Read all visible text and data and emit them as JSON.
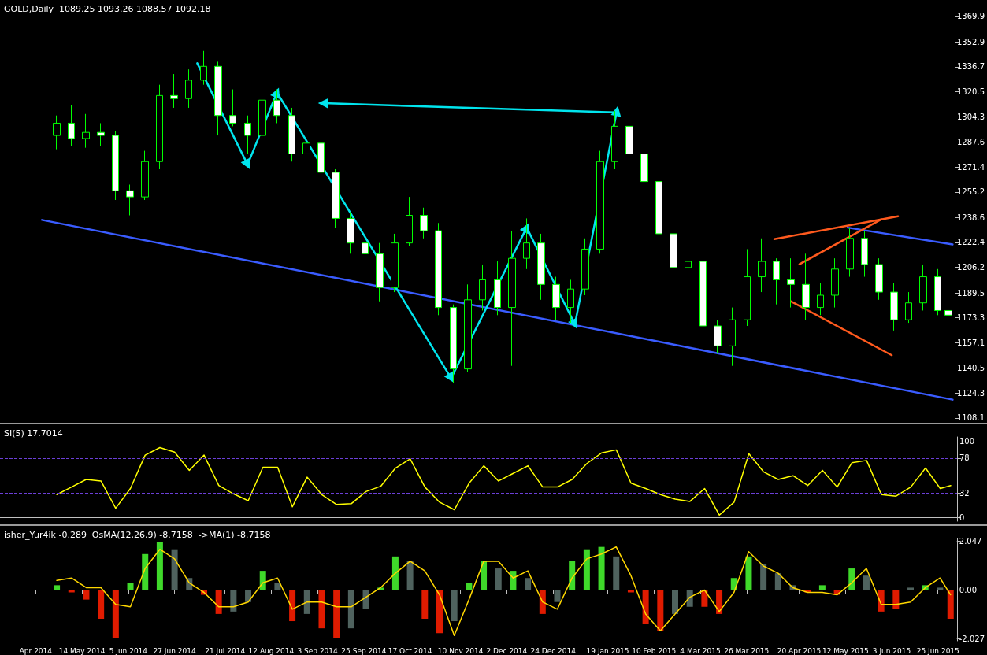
{
  "chart_data": [
    {
      "type": "candlestick",
      "title": "GOLD,Daily  1089.25 1093.26 1088.57 1092.18",
      "color": "#00ff00",
      "marker": "none",
      "grid": false,
      "tick_labels": "y",
      "x": [
        "2014-05-02",
        "2014-05-09",
        "2014-05-16",
        "2014-05-23",
        "2014-05-30",
        "2014-06-06",
        "2014-06-13",
        "2014-06-20",
        "2014-06-27",
        "2014-07-04",
        "2014-07-11",
        "2014-07-18",
        "2014-07-25",
        "2014-08-01",
        "2014-08-08",
        "2014-08-15",
        "2014-08-22",
        "2014-08-29",
        "2014-09-05",
        "2014-09-12",
        "2014-09-19",
        "2014-09-26",
        "2014-10-03",
        "2014-10-10",
        "2014-10-17",
        "2014-10-24",
        "2014-10-31",
        "2014-11-07",
        "2014-11-14",
        "2014-11-21",
        "2014-11-28",
        "2014-12-05",
        "2014-12-12",
        "2014-12-19",
        "2014-12-26",
        "2015-01-02",
        "2015-01-09",
        "2015-01-16",
        "2015-01-23",
        "2015-01-30",
        "2015-02-06",
        "2015-02-13",
        "2015-02-20",
        "2015-02-27",
        "2015-03-06",
        "2015-03-13",
        "2015-03-20",
        "2015-03-27",
        "2015-04-03",
        "2015-04-10",
        "2015-04-17",
        "2015-04-24",
        "2015-05-01",
        "2015-05-08",
        "2015-05-15",
        "2015-05-22",
        "2015-05-29",
        "2015-06-05",
        "2015-06-12",
        "2015-06-19",
        "2015-06-26",
        "2015-07-01"
      ],
      "ohlc": [
        [
          1292,
          1305,
          1283,
          1300
        ],
        [
          1300,
          1312,
          1285,
          1290
        ],
        [
          1290,
          1306,
          1284,
          1294
        ],
        [
          1294,
          1300,
          1285,
          1292
        ],
        [
          1292,
          1295,
          1250,
          1256
        ],
        [
          1256,
          1260,
          1240,
          1252
        ],
        [
          1252,
          1282,
          1250,
          1275
        ],
        [
          1275,
          1325,
          1270,
          1318
        ],
        [
          1318,
          1332,
          1310,
          1316
        ],
        [
          1316,
          1335,
          1310,
          1328
        ],
        [
          1328,
          1347,
          1325,
          1337
        ],
        [
          1337,
          1340,
          1292,
          1305
        ],
        [
          1305,
          1322,
          1298,
          1300
        ],
        [
          1300,
          1305,
          1280,
          1292
        ],
        [
          1292,
          1322,
          1290,
          1315
        ],
        [
          1315,
          1322,
          1300,
          1305
        ],
        [
          1305,
          1310,
          1275,
          1280
        ],
        [
          1280,
          1292,
          1278,
          1287
        ],
        [
          1287,
          1290,
          1260,
          1268
        ],
        [
          1268,
          1270,
          1232,
          1238
        ],
        [
          1238,
          1242,
          1215,
          1222
        ],
        [
          1222,
          1232,
          1205,
          1215
        ],
        [
          1215,
          1222,
          1184,
          1193
        ],
        [
          1193,
          1228,
          1190,
          1222
        ],
        [
          1222,
          1252,
          1220,
          1240
        ],
        [
          1240,
          1245,
          1225,
          1230
        ],
        [
          1230,
          1235,
          1175,
          1180
        ],
        [
          1180,
          1182,
          1131,
          1140
        ],
        [
          1140,
          1195,
          1138,
          1185
        ],
        [
          1185,
          1208,
          1178,
          1198
        ],
        [
          1198,
          1210,
          1175,
          1180
        ],
        [
          1180,
          1230,
          1142,
          1212
        ],
        [
          1212,
          1238,
          1205,
          1222
        ],
        [
          1222,
          1228,
          1185,
          1195
        ],
        [
          1195,
          1200,
          1172,
          1180
        ],
        [
          1180,
          1198,
          1170,
          1192
        ],
        [
          1192,
          1225,
          1188,
          1218
        ],
        [
          1218,
          1282,
          1215,
          1275
        ],
        [
          1275,
          1308,
          1270,
          1298
        ],
        [
          1298,
          1306,
          1270,
          1280
        ],
        [
          1280,
          1292,
          1255,
          1262
        ],
        [
          1262,
          1268,
          1220,
          1228
        ],
        [
          1228,
          1240,
          1198,
          1206
        ],
        [
          1206,
          1218,
          1192,
          1210
        ],
        [
          1210,
          1212,
          1162,
          1168
        ],
        [
          1168,
          1172,
          1150,
          1155
        ],
        [
          1155,
          1180,
          1142,
          1172
        ],
        [
          1172,
          1218,
          1168,
          1200
        ],
        [
          1200,
          1225,
          1190,
          1210
        ],
        [
          1210,
          1212,
          1182,
          1198
        ],
        [
          1198,
          1212,
          1180,
          1195
        ],
        [
          1195,
          1215,
          1172,
          1180
        ],
        [
          1180,
          1196,
          1175,
          1188
        ],
        [
          1188,
          1212,
          1180,
          1205
        ],
        [
          1205,
          1232,
          1200,
          1225
        ],
        [
          1225,
          1230,
          1200,
          1208
        ],
        [
          1208,
          1212,
          1185,
          1190
        ],
        [
          1190,
          1196,
          1165,
          1172
        ],
        [
          1172,
          1190,
          1170,
          1183
        ],
        [
          1183,
          1208,
          1178,
          1200
        ],
        [
          1200,
          1205,
          1175,
          1178
        ],
        [
          1178,
          1186,
          1170,
          1175
        ]
      ],
      "series": [
        {
          "type": "line",
          "color": "#3a5cff",
          "x": [
            "2014-04-25",
            "2015-07-03"
          ],
          "values": [
            1237,
            1120
          ]
        },
        {
          "type": "line",
          "color": "#3a5cff",
          "x": [
            "2015-05-14",
            "2015-07-03"
          ],
          "values": [
            1232,
            1221
          ]
        },
        {
          "type": "line",
          "color": "#00e5ee",
          "marker": "triangle",
          "x": [
            "2014-07-08",
            "2014-08-01",
            "2014-08-15",
            "2014-11-06",
            "2014-12-12",
            "2015-01-04",
            "2015-01-24"
          ],
          "values": [
            1339,
            1273,
            1320,
            1134,
            1232,
            1169,
            1308
          ]
        },
        {
          "type": "line",
          "color": "#00e5ee",
          "marker": "triangle",
          "x": [
            "2015-01-24",
            "2014-09-06"
          ],
          "values": [
            1307,
            1313
          ]
        },
        {
          "type": "line",
          "color": "#ff5a1e",
          "x": [
            "2015-04-09",
            "2015-06-07"
          ],
          "values": [
            1224.5,
            1239.4
          ]
        },
        {
          "type": "line",
          "color": "#ff5a1e",
          "x": [
            "2015-04-21",
            "2015-05-30"
          ],
          "values": [
            1208.2,
            1237.4
          ]
        },
        {
          "type": "line",
          "color": "#ff5a1e",
          "x": [
            "2015-04-17",
            "2015-06-04"
          ],
          "values": [
            1184,
            1148.9
          ]
        }
      ],
      "xlim": [
        "2014-04-05",
        "2015-07-04"
      ],
      "ylim": [
        1107,
        1372
      ],
      "yticks": [
        1108.1,
        1124.3,
        1140.5,
        1157.1,
        1173.3,
        1189.5,
        1206.2,
        1222.4,
        1238.6,
        1255.2,
        1271.4,
        1287.6,
        1304.3,
        1320.5,
        1336.7,
        1352.9,
        1369.9
      ]
    },
    {
      "type": "line",
      "title": "SI(5) 17.7014",
      "color": "#ffff00",
      "marker": "none",
      "grid": false,
      "tick_labels": "y",
      "x": [
        "2014-05-02",
        "2014-05-09",
        "2014-05-16",
        "2014-05-23",
        "2014-05-30",
        "2014-06-06",
        "2014-06-13",
        "2014-06-20",
        "2014-06-27",
        "2014-07-04",
        "2014-07-11",
        "2014-07-18",
        "2014-07-25",
        "2014-08-01",
        "2014-08-08",
        "2014-08-15",
        "2014-08-22",
        "2014-08-29",
        "2014-09-05",
        "2014-09-12",
        "2014-09-19",
        "2014-09-26",
        "2014-10-03",
        "2014-10-10",
        "2014-10-17",
        "2014-10-24",
        "2014-10-31",
        "2014-11-07",
        "2014-11-14",
        "2014-11-21",
        "2014-11-28",
        "2014-12-05",
        "2014-12-12",
        "2014-12-19",
        "2014-12-26",
        "2015-01-02",
        "2015-01-09",
        "2015-01-16",
        "2015-01-23",
        "2015-01-30",
        "2015-02-06",
        "2015-02-13",
        "2015-02-20",
        "2015-02-27",
        "2015-03-06",
        "2015-03-13",
        "2015-03-20",
        "2015-03-27",
        "2015-04-03",
        "2015-04-10",
        "2015-04-17",
        "2015-04-24",
        "2015-05-01",
        "2015-05-08",
        "2015-05-15",
        "2015-05-22",
        "2015-05-29",
        "2015-06-05",
        "2015-06-12",
        "2015-06-19",
        "2015-06-26",
        "2015-07-01"
      ],
      "values": [
        30,
        40,
        50,
        48,
        12,
        38,
        82,
        92,
        86,
        62,
        82,
        42,
        31,
        22,
        66,
        66,
        14,
        53,
        30,
        17,
        18,
        34,
        41,
        65,
        77,
        40,
        20,
        10,
        45,
        68,
        48,
        58,
        68,
        40,
        40,
        50,
        71,
        85,
        89,
        45,
        38,
        30,
        24,
        21,
        38,
        3,
        20,
        84,
        60,
        50,
        55,
        42,
        62,
        40,
        72,
        75,
        30,
        28,
        40,
        65,
        38,
        42
      ],
      "ref_lines": [
        {
          "axis": "y",
          "value": 78,
          "color": "#6b3fd6",
          "line_style": "dashed"
        },
        {
          "axis": "y",
          "value": 32,
          "color": "#6b3fd6",
          "line_style": "dashed"
        }
      ],
      "xlim": [
        "2014-04-05",
        "2015-07-04"
      ],
      "ylim": [
        -5,
        106
      ],
      "yticks": [
        0,
        32,
        78,
        100
      ]
    },
    {
      "type": "bar",
      "title": "isher_Yur4ik -0.289  OsMA(12,26,9) -8.7158  ->MA(1) -8.7158",
      "marker": "none",
      "grid": false,
      "x": [
        "2014-05-02",
        "2014-05-09",
        "2014-05-16",
        "2014-05-23",
        "2014-05-30",
        "2014-06-06",
        "2014-06-13",
        "2014-06-20",
        "2014-06-27",
        "2014-07-04",
        "2014-07-11",
        "2014-07-18",
        "2014-07-25",
        "2014-08-01",
        "2014-08-08",
        "2014-08-15",
        "2014-08-22",
        "2014-08-29",
        "2014-09-05",
        "2014-09-12",
        "2014-09-19",
        "2014-09-26",
        "2014-10-03",
        "2014-10-10",
        "2014-10-17",
        "2014-10-24",
        "2014-10-31",
        "2014-11-07",
        "2014-11-14",
        "2014-11-21",
        "2014-11-28",
        "2014-12-05",
        "2014-12-12",
        "2014-12-19",
        "2014-12-26",
        "2015-01-02",
        "2015-01-09",
        "2015-01-16",
        "2015-01-23",
        "2015-01-30",
        "2015-02-06",
        "2015-02-13",
        "2015-02-20",
        "2015-02-27",
        "2015-03-06",
        "2015-03-13",
        "2015-03-20",
        "2015-03-27",
        "2015-04-03",
        "2015-04-10",
        "2015-04-17",
        "2015-04-24",
        "2015-05-01",
        "2015-05-08",
        "2015-05-15",
        "2015-05-22",
        "2015-05-29",
        "2015-06-05",
        "2015-06-12",
        "2015-06-19",
        "2015-06-26",
        "2015-07-01"
      ],
      "series": [
        {
          "type": "bar",
          "values": [
            0.2,
            -0.1,
            -0.4,
            -1.2,
            -2.0,
            0.3,
            1.5,
            2.0,
            1.7,
            0.5,
            -0.2,
            -1.0,
            -0.9,
            -0.5,
            0.8,
            0.3,
            -1.3,
            -1.0,
            -1.6,
            -2.0,
            -1.6,
            -0.8,
            0.1,
            1.4,
            1.2,
            -1.2,
            -1.8,
            -1.3,
            0.3,
            1.2,
            0.9,
            0.8,
            0.5,
            -1.0,
            -0.5,
            1.2,
            1.7,
            1.8,
            1.4,
            -0.1,
            -1.4,
            -1.7,
            -1.0,
            -0.7,
            -0.7,
            -1.0,
            0.5,
            1.4,
            1.1,
            0.7,
            0.2,
            -0.1,
            0.2,
            -0.2,
            0.9,
            0.6,
            -0.9,
            -0.8,
            0.1,
            0.2,
            0.1,
            -1.2
          ],
          "colors": [
            "#3fd92a",
            "#e01b00",
            "#e01b00",
            "#e01b00",
            "#e01b00",
            "#3fd92a",
            "#3fd92a",
            "#3fd92a",
            "#4f625e",
            "#4f625e",
            "#e01b00",
            "#e01b00",
            "#4f625e",
            "#4f625e",
            "#3fd92a",
            "#4f625e",
            "#e01b00",
            "#4f625e",
            "#e01b00",
            "#e01b00",
            "#4f625e",
            "#4f625e",
            "#3fd92a",
            "#3fd92a",
            "#4f625e",
            "#e01b00",
            "#e01b00",
            "#4f625e",
            "#3fd92a",
            "#3fd92a",
            "#4f625e",
            "#3fd92a",
            "#4f625e",
            "#e01b00",
            "#4f625e",
            "#3fd92a",
            "#3fd92a",
            "#3fd92a",
            "#4f625e",
            "#e01b00",
            "#e01b00",
            "#e01b00",
            "#4f625e",
            "#4f625e",
            "#e01b00",
            "#e01b00",
            "#3fd92a",
            "#3fd92a",
            "#4f625e",
            "#4f625e",
            "#4f625e",
            "#e01b00",
            "#3fd92a",
            "#e01b00",
            "#3fd92a",
            "#4f625e",
            "#e01b00",
            "#e01b00",
            "#4f625e",
            "#3fd92a",
            "#4f625e",
            "#e01b00"
          ]
        },
        {
          "type": "line",
          "color": "#ffd700",
          "values": [
            0.4,
            0.5,
            0.1,
            0.1,
            -0.6,
            -0.7,
            0.9,
            1.7,
            1.3,
            0.3,
            -0.1,
            -0.7,
            -0.7,
            -0.5,
            0.3,
            0.5,
            -0.8,
            -0.5,
            -0.5,
            -0.7,
            -0.7,
            -0.3,
            0.1,
            0.7,
            1.2,
            0.8,
            -0.2,
            -1.9,
            -0.4,
            1.2,
            1.2,
            0.5,
            0.8,
            -0.5,
            -0.8,
            0.5,
            1.3,
            1.5,
            1.8,
            0.6,
            -1.0,
            -1.7,
            -1.0,
            -0.3,
            0,
            -0.9,
            -0.1,
            1.6,
            1.0,
            0.7,
            0.1,
            -0.1,
            -0.1,
            -0.2,
            0.3,
            0.9,
            -0.6,
            -0.6,
            -0.5,
            0.1,
            0.5,
            -0.2
          ]
        }
      ],
      "ref_lines": [
        {
          "axis": "y",
          "value": 0,
          "color": "#7fa7a0",
          "line_style": "dashed"
        }
      ],
      "xlim": [
        "2014-04-05",
        "2015-07-04"
      ],
      "ylim": [
        -2.12,
        2.15
      ],
      "yticks": [
        -2.027,
        {
          "value": 0,
          "label": "0.00"
        },
        2.047
      ],
      "xticks": [
        {
          "value": "2014-04-22",
          "label": "Apr 2014"
        },
        {
          "value": "2014-05-14",
          "label": "14 May 2014"
        },
        {
          "value": "2014-06-05",
          "label": "5 Jun 2014"
        },
        {
          "value": "2014-06-27",
          "label": "27 Jun 2014"
        },
        {
          "value": "2014-07-21",
          "label": "21 Jul 2014"
        },
        {
          "value": "2014-08-12",
          "label": "12 Aug 2014"
        },
        {
          "value": "2014-09-03",
          "label": "3 Sep 2014"
        },
        {
          "value": "2014-09-25",
          "label": "25 Sep 2014"
        },
        {
          "value": "2014-10-17",
          "label": "17 Oct 2014"
        },
        {
          "value": "2014-11-10",
          "label": "10 Nov 2014"
        },
        {
          "value": "2014-12-02",
          "label": "2 Dec 2014"
        },
        {
          "value": "2014-12-24",
          "label": "24 Dec 2014"
        },
        {
          "value": "2015-01-19",
          "label": "19 Jan 2015"
        },
        {
          "value": "2015-02-10",
          "label": "10 Feb 2015"
        },
        {
          "value": "2015-03-04",
          "label": "4 Mar 2015"
        },
        {
          "value": "2015-03-26",
          "label": "26 Mar 2015"
        },
        {
          "value": "2015-04-20",
          "label": "20 Apr 2015"
        },
        {
          "value": "2015-05-12",
          "label": "12 May 2015"
        },
        {
          "value": "2015-06-03",
          "label": "3 Jun 2015"
        },
        {
          "value": "2015-06-25",
          "label": "25 Jun 2015"
        }
      ]
    }
  ]
}
